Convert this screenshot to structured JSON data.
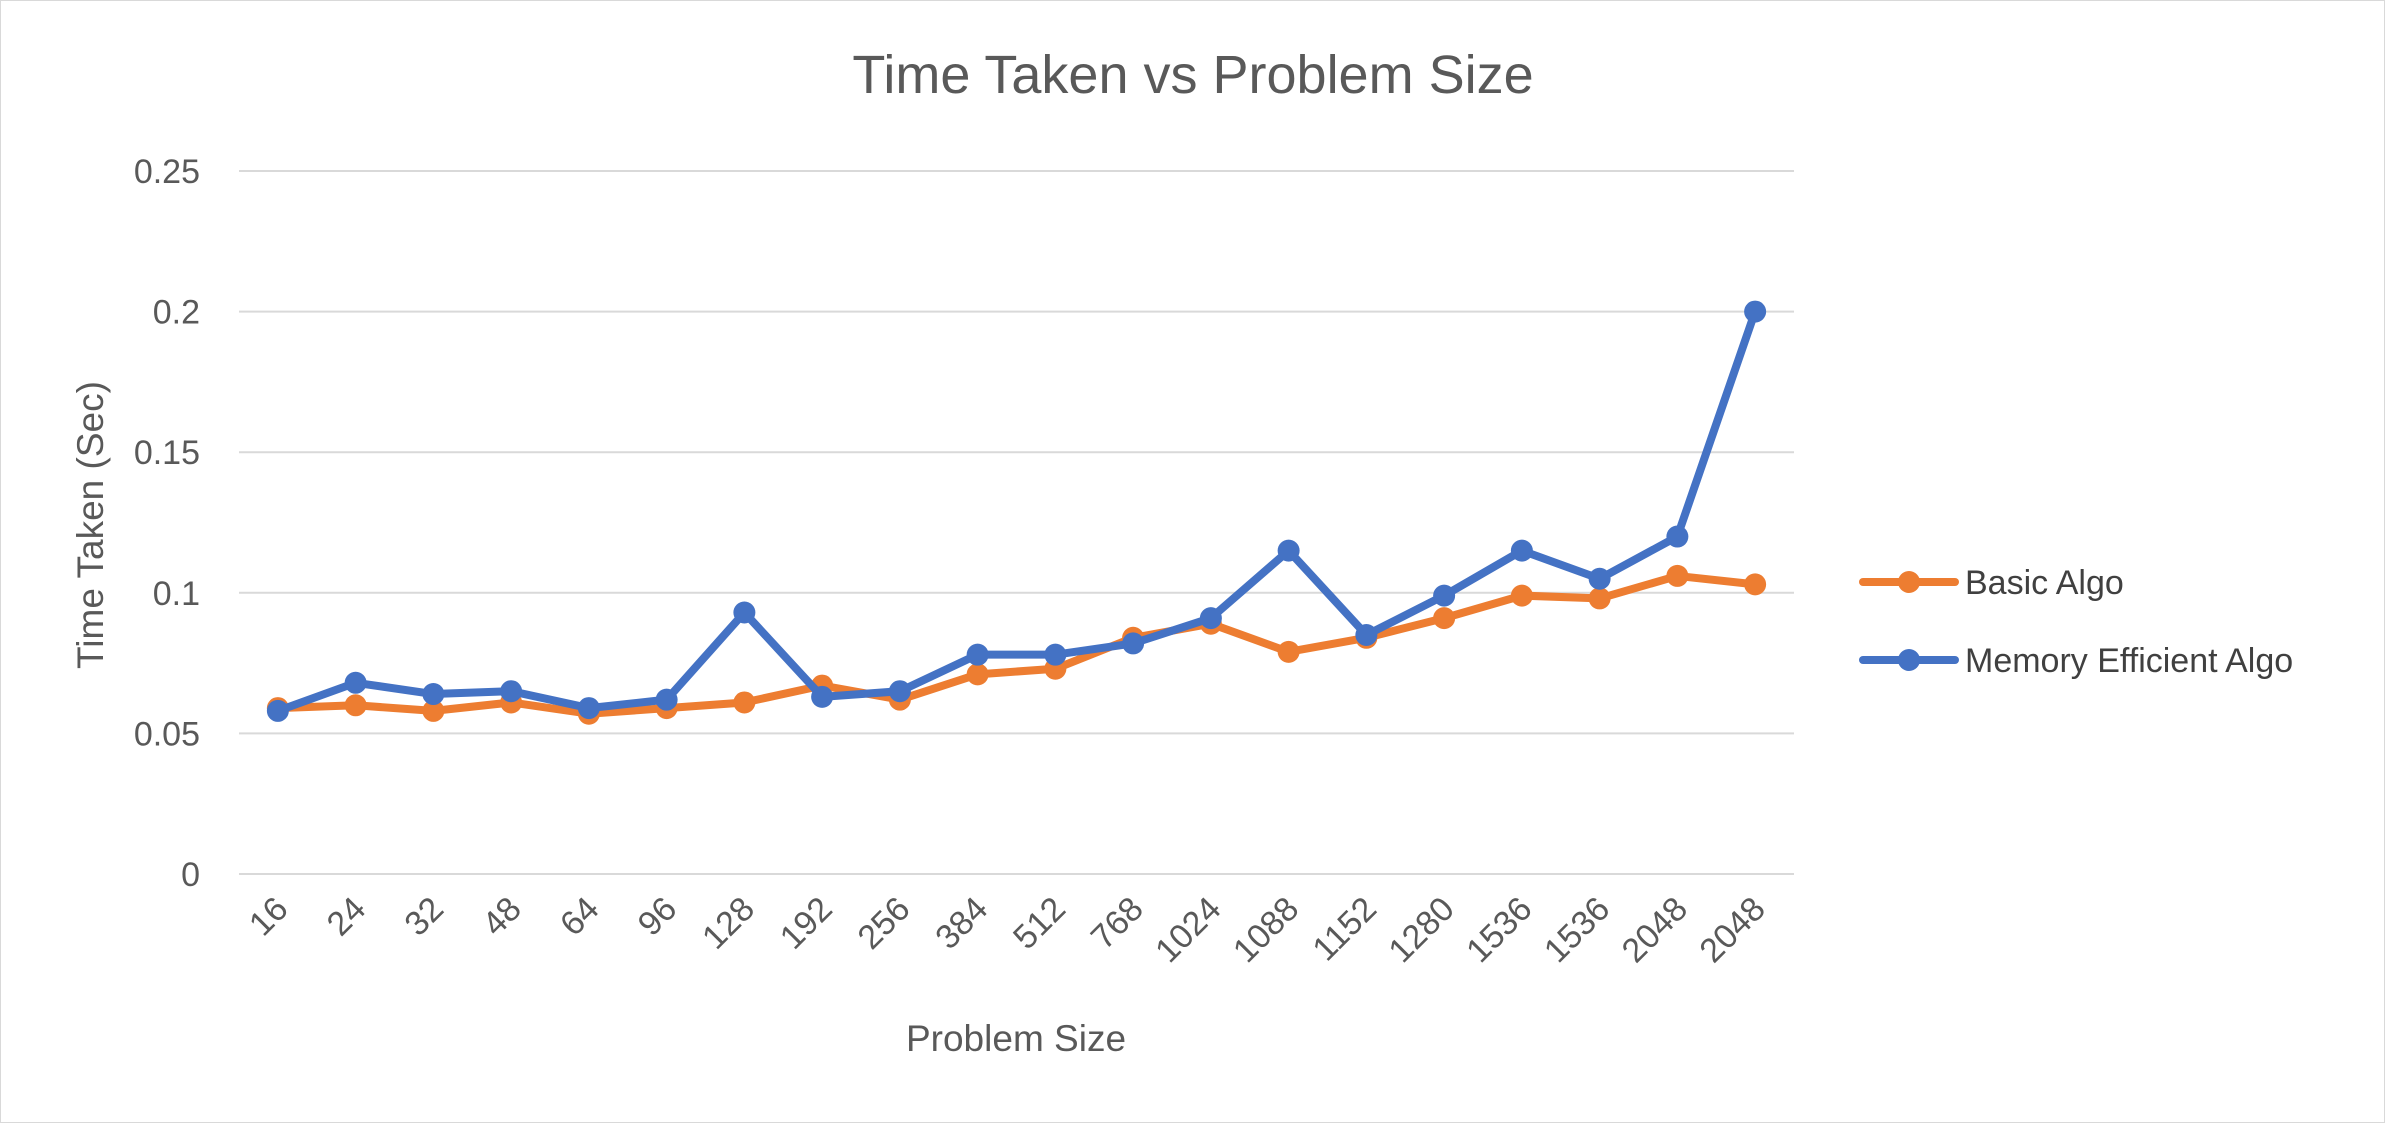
{
  "chart_data": {
    "type": "line",
    "title": "Time Taken vs Problem Size",
    "xlabel": "Problem Size",
    "ylabel": "Time Taken (Sec)",
    "categories": [
      "16",
      "24",
      "32",
      "48",
      "64",
      "96",
      "128",
      "192",
      "256",
      "384",
      "512",
      "768",
      "1024",
      "1088",
      "1152",
      "1280",
      "1536",
      "1536",
      "2048",
      "2048"
    ],
    "ylim": [
      0,
      0.25
    ],
    "yticks": [
      "0",
      "0.05",
      "0.1",
      "0.15",
      "0.2",
      "0.25"
    ],
    "grid": true,
    "legend_position": "right",
    "series": [
      {
        "name": "Basic Algo",
        "color": "#ED7D31",
        "values": [
          0.059,
          0.06,
          0.058,
          0.061,
          0.057,
          0.059,
          0.061,
          0.067,
          0.062,
          0.071,
          0.073,
          0.084,
          0.089,
          0.079,
          0.084,
          0.091,
          0.099,
          0.098,
          0.106,
          0.103
        ]
      },
      {
        "name": "Memory Efficient Algo",
        "color": "#4472C4",
        "values": [
          0.058,
          0.068,
          0.064,
          0.065,
          0.059,
          0.062,
          0.093,
          0.063,
          0.065,
          0.078,
          0.078,
          0.082,
          0.091,
          0.115,
          0.085,
          0.099,
          0.115,
          0.105,
          0.12,
          0.2
        ]
      }
    ]
  }
}
